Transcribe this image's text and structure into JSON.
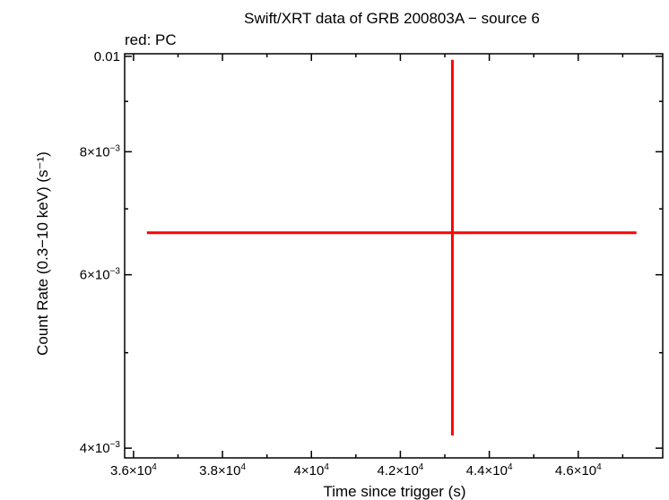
{
  "chart_data": {
    "type": "scatter",
    "title": "Swift/XRT data of GRB 200803A − source 6",
    "subtitle": "red: PC",
    "xlabel": "Time since trigger (s)",
    "ylabel": "Count Rate (0.3−10 keV) (s⁻¹)",
    "xlim": [
      35800,
      47900
    ],
    "ylim": [
      0.00391,
      0.01006
    ],
    "y_scale": "log",
    "grid": false,
    "x_ticks": [
      {
        "value": 36000,
        "mantissa": "3.6×10",
        "exp": "4"
      },
      {
        "value": 38000,
        "mantissa": "3.8×10",
        "exp": "4"
      },
      {
        "value": 40000,
        "mantissa": "4×10",
        "exp": "4"
      },
      {
        "value": 42000,
        "mantissa": "4.2×10",
        "exp": "4"
      },
      {
        "value": 44000,
        "mantissa": "4.4×10",
        "exp": "4"
      },
      {
        "value": 46000,
        "mantissa": "4.6×10",
        "exp": "4"
      }
    ],
    "y_ticks": [
      {
        "value": 0.004,
        "mantissa": "4×10",
        "exp": "−3"
      },
      {
        "value": 0.006,
        "mantissa": "6×10",
        "exp": "−3"
      },
      {
        "value": 0.008,
        "mantissa": "8×10",
        "exp": "−3"
      },
      {
        "value": 0.01,
        "mantissa": "0.01",
        "exp": ""
      }
    ],
    "series": [
      {
        "color": "#ff0000",
        "points": [
          {
            "x": 43170,
            "x_err_minus": 6870,
            "x_err_plus": 4140,
            "y": 0.00662,
            "y_err_minus": 0.0025,
            "y_err_plus": 0.0033
          }
        ]
      }
    ]
  }
}
